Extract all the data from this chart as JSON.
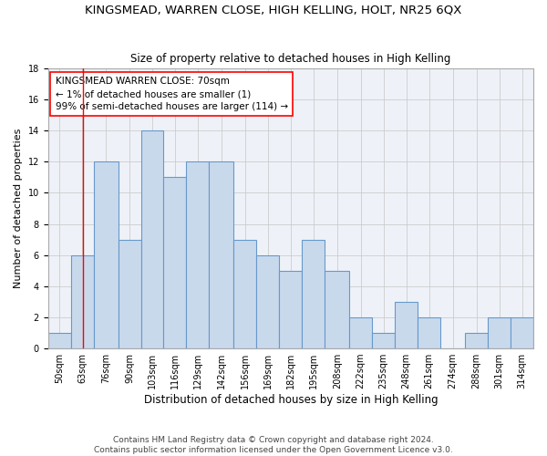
{
  "title": "KINGSMEAD, WARREN CLOSE, HIGH KELLING, HOLT, NR25 6QX",
  "subtitle": "Size of property relative to detached houses in High Kelling",
  "xlabel": "Distribution of detached houses by size in High Kelling",
  "ylabel": "Number of detached properties",
  "footer1": "Contains HM Land Registry data © Crown copyright and database right 2024.",
  "footer2": "Contains public sector information licensed under the Open Government Licence v3.0.",
  "bin_labels": [
    "50sqm",
    "63sqm",
    "76sqm",
    "90sqm",
    "103sqm",
    "116sqm",
    "129sqm",
    "142sqm",
    "156sqm",
    "169sqm",
    "182sqm",
    "195sqm",
    "208sqm",
    "222sqm",
    "235sqm",
    "248sqm",
    "261sqm",
    "274sqm",
    "288sqm",
    "301sqm",
    "314sqm"
  ],
  "bin_edges": [
    50,
    63,
    76,
    90,
    103,
    116,
    129,
    142,
    156,
    169,
    182,
    195,
    208,
    222,
    235,
    248,
    261,
    274,
    288,
    301,
    314,
    327
  ],
  "values": [
    1,
    6,
    12,
    7,
    14,
    11,
    12,
    12,
    7,
    6,
    5,
    7,
    5,
    2,
    1,
    3,
    2,
    0,
    1,
    2,
    2
  ],
  "bar_color": "#c9d9ec",
  "bar_edge_color": "#6699cc",
  "bar_linewidth": 0.8,
  "red_line_x": 70,
  "ylim": [
    0,
    18
  ],
  "yticks": [
    0,
    2,
    4,
    6,
    8,
    10,
    12,
    14,
    16,
    18
  ],
  "grid_color": "#cccccc",
  "annotation_box": {
    "text_line1": "KINGSMEAD WARREN CLOSE: 70sqm",
    "text_line2": "← 1% of detached houses are smaller (1)",
    "text_line3": "99% of semi-detached houses are larger (114) →",
    "fontsize": 7.5
  },
  "title_fontsize": 9.5,
  "subtitle_fontsize": 8.5,
  "xlabel_fontsize": 8.5,
  "ylabel_fontsize": 8,
  "tick_fontsize": 7,
  "footer_fontsize": 6.5,
  "bg_color": "#eef2f8"
}
